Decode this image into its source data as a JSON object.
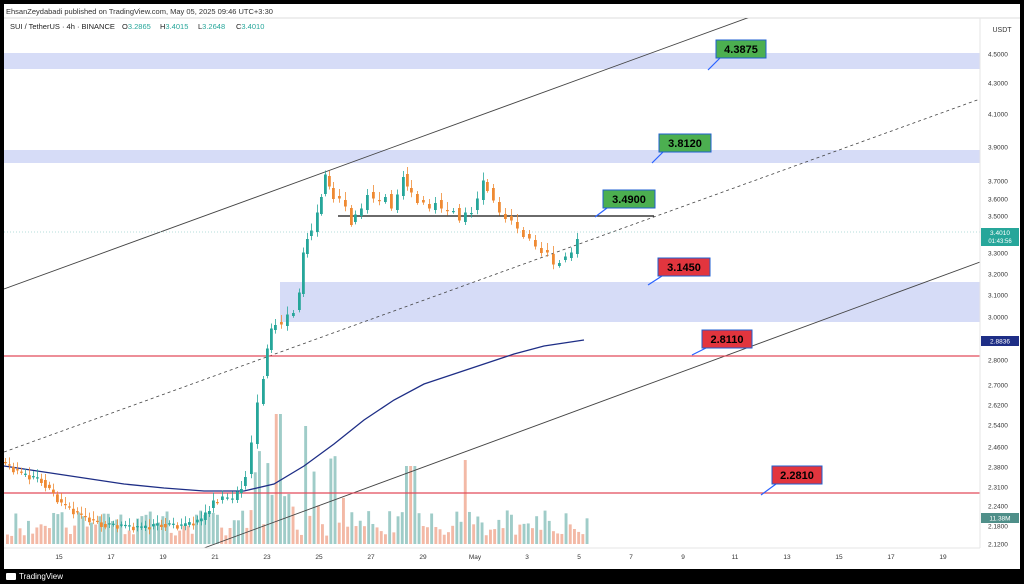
{
  "header": {
    "publisher": "EhsanZeydabadi published on TradingView.com, May 05, 2025 09:46 UTC+3:30",
    "symbol": "SUI / TetherUS · 4h · BINANCE",
    "ohlc": [
      {
        "k": "O",
        "v": "3.2865"
      },
      {
        "k": "H",
        "v": "3.4015"
      },
      {
        "k": "L",
        "v": "3.2648"
      },
      {
        "k": "C",
        "v": "3.4010"
      }
    ]
  },
  "footer": {
    "brand": "TradingView"
  },
  "colors": {
    "up": "#26a69a",
    "down": "#ef8a33",
    "vol_up": "#9fccc8",
    "vol_down": "#f3b9a6",
    "zone": "#d6dcf7",
    "red": "#e24a5a",
    "ma": "#1e2e86",
    "green_label": "#4caf50",
    "red_label": "#e2353e"
  },
  "chart_data": {
    "type": "candlestick",
    "title": "SUI / TetherUS · 4h · BINANCE",
    "y_unit": "USDT",
    "y_ticks": [
      "4.5000",
      "4.3000",
      "4.1000",
      "3.9000",
      "3.7000",
      "3.6000",
      "3.5000",
      "3.3000",
      "3.2000",
      "3.1000",
      "3.0000",
      "2.8000",
      "2.7000",
      "2.6200",
      "2.5400",
      "2.4600",
      "2.3800",
      "2.3100",
      "2.2400",
      "2.1800",
      "2.1200"
    ],
    "x_ticks": [
      "15",
      "17",
      "19",
      "21",
      "23",
      "25",
      "27",
      "29",
      "May",
      "3",
      "5",
      "7",
      "9",
      "11",
      "13",
      "15",
      "17",
      "19"
    ],
    "last_price": {
      "value": "3.4010",
      "countdown": "01:43:56"
    },
    "ma_price": "2.8836",
    "volume_label": "11.38M",
    "levels": [
      {
        "value": "4.3875",
        "kind": "resistance-zone",
        "color": "green"
      },
      {
        "value": "3.8120",
        "kind": "resistance-zone",
        "color": "green"
      },
      {
        "value": "3.4900",
        "kind": "horizontal-line",
        "color": "green"
      },
      {
        "value": "3.1450",
        "kind": "support-zone",
        "color": "red"
      },
      {
        "value": "2.8110",
        "kind": "horizontal-line",
        "color": "red"
      },
      {
        "value": "2.2810",
        "kind": "horizontal-line",
        "color": "red"
      }
    ]
  }
}
